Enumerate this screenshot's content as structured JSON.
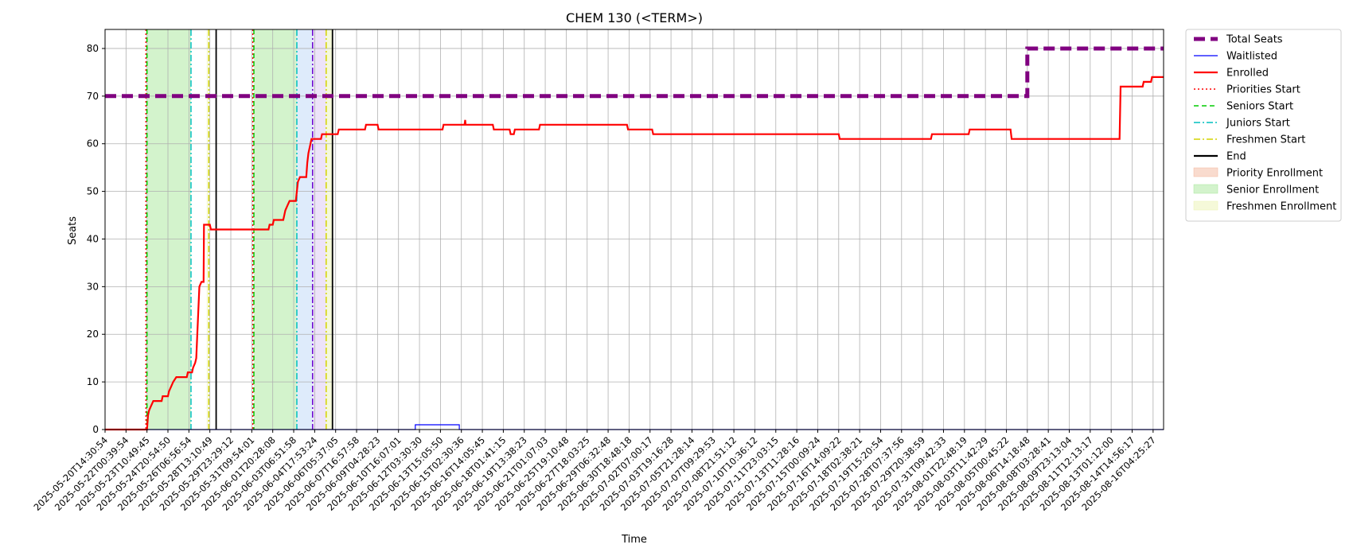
{
  "chart_data": {
    "type": "line",
    "title": "CHEM 130 (<TERM>)",
    "xlabel": "Time",
    "ylabel": "Seats",
    "ylim": [
      0,
      84
    ],
    "yticks": [
      0,
      10,
      20,
      30,
      40,
      50,
      60,
      70,
      80
    ],
    "xlim": [
      "2025-05-20T14:30:54",
      "2025-08-17T04:00:00"
    ],
    "grid": true,
    "legend_position": "outside-top-right",
    "xticks": [
      "2025-05-20T14:30:54",
      "2025-05-22T00:39:54",
      "2025-05-23T10:49:45",
      "2025-05-24T20:54:50",
      "2025-05-26T06:56:54",
      "2025-05-28T13:10:49",
      "2025-05-29T23:29:12",
      "2025-05-31T09:54:01",
      "2025-06-01T20:28:08",
      "2025-06-03T06:51:58",
      "2025-06-04T17:53:24",
      "2025-06-06T05:37:05",
      "2025-06-07T16:57:58",
      "2025-06-09T04:28:23",
      "2025-06-10T16:07:01",
      "2025-06-12T03:30:30",
      "2025-06-13T15:05:50",
      "2025-06-15T02:30:36",
      "2025-06-16T14:05:45",
      "2025-06-18T01:41:15",
      "2025-06-19T13:38:23",
      "2025-06-21T01:07:03",
      "2025-06-25T19:10:48",
      "2025-06-27T18:03:25",
      "2025-06-29T06:32:48",
      "2025-06-30T18:48:18",
      "2025-07-02T07:00:17",
      "2025-07-03T19:16:28",
      "2025-07-05T21:28:14",
      "2025-07-07T09:29:53",
      "2025-07-08T21:51:12",
      "2025-07-10T10:36:12",
      "2025-07-11T23:03:15",
      "2025-07-13T11:28:16",
      "2025-07-15T00:09:24",
      "2025-07-16T14:09:22",
      "2025-07-18T02:38:21",
      "2025-07-19T15:20:54",
      "2025-07-28T07:37:56",
      "2025-07-29T20:38:59",
      "2025-07-31T09:42:33",
      "2025-08-01T22:48:19",
      "2025-08-03T11:42:29",
      "2025-08-05T00:45:22",
      "2025-08-06T14:18:48",
      "2025-08-08T03:28:41",
      "2025-08-09T23:13:04",
      "2025-08-11T12:13:17",
      "2025-08-13T01:12:00",
      "2025-08-14T14:56:17",
      "2025-08-16T04:25:27"
    ],
    "series": [
      {
        "name": "Total Seats",
        "color": "#800080",
        "style": "dashed-thick",
        "points": [
          [
            0,
            70
          ],
          [
            44,
            70
          ],
          [
            44,
            80
          ],
          [
            50.5,
            80
          ]
        ]
      },
      {
        "name": "Waitlisted",
        "color": "#0000ff",
        "style": "solid-thin",
        "points": [
          [
            0,
            0
          ],
          [
            14.8,
            0
          ],
          [
            14.8,
            1
          ],
          [
            16.9,
            1
          ],
          [
            16.9,
            0
          ],
          [
            50.5,
            0
          ]
        ]
      },
      {
        "name": "Enrolled",
        "color": "#ff0000",
        "style": "solid",
        "points": [
          [
            0,
            0
          ],
          [
            2.0,
            0
          ],
          [
            2.05,
            3
          ],
          [
            2.1,
            4
          ],
          [
            2.2,
            5
          ],
          [
            2.3,
            6
          ],
          [
            2.7,
            6
          ],
          [
            2.75,
            7
          ],
          [
            3.0,
            7
          ],
          [
            3.05,
            8
          ],
          [
            3.15,
            9
          ],
          [
            3.25,
            10
          ],
          [
            3.4,
            11
          ],
          [
            3.9,
            11
          ],
          [
            3.95,
            12
          ],
          [
            4.15,
            12
          ],
          [
            4.2,
            13
          ],
          [
            4.3,
            14
          ],
          [
            4.35,
            15
          ],
          [
            4.4,
            20
          ],
          [
            4.45,
            25
          ],
          [
            4.5,
            30
          ],
          [
            4.6,
            31
          ],
          [
            4.7,
            31
          ],
          [
            4.72,
            43
          ],
          [
            5.0,
            43
          ],
          [
            5.05,
            42
          ],
          [
            7.8,
            42
          ],
          [
            7.85,
            43
          ],
          [
            8.0,
            43
          ],
          [
            8.05,
            44
          ],
          [
            8.5,
            44
          ],
          [
            8.55,
            45
          ],
          [
            8.6,
            46
          ],
          [
            8.7,
            47
          ],
          [
            8.8,
            48
          ],
          [
            9.1,
            48
          ],
          [
            9.15,
            50
          ],
          [
            9.2,
            52
          ],
          [
            9.3,
            53
          ],
          [
            9.6,
            53
          ],
          [
            9.65,
            56
          ],
          [
            9.7,
            58
          ],
          [
            9.8,
            60
          ],
          [
            9.85,
            61
          ],
          [
            10.3,
            61
          ],
          [
            10.35,
            62
          ],
          [
            11.1,
            62
          ],
          [
            11.15,
            63
          ],
          [
            12.4,
            63
          ],
          [
            12.45,
            64
          ],
          [
            13.0,
            64
          ],
          [
            13.05,
            63
          ],
          [
            16.1,
            63
          ],
          [
            16.15,
            64
          ],
          [
            17.15,
            64
          ],
          [
            17.18,
            65
          ],
          [
            17.2,
            64
          ],
          [
            18.5,
            64
          ],
          [
            18.55,
            63
          ],
          [
            19.3,
            63
          ],
          [
            19.35,
            62
          ],
          [
            19.5,
            62
          ],
          [
            19.55,
            63
          ],
          [
            20.7,
            63
          ],
          [
            20.75,
            64
          ],
          [
            24.9,
            64
          ],
          [
            24.95,
            63
          ],
          [
            26.1,
            63
          ],
          [
            26.15,
            62
          ],
          [
            35.0,
            62
          ],
          [
            35.05,
            61
          ],
          [
            39.4,
            61
          ],
          [
            39.45,
            62
          ],
          [
            41.2,
            62
          ],
          [
            41.25,
            63
          ],
          [
            43.2,
            63
          ],
          [
            43.25,
            61
          ],
          [
            48.4,
            61
          ],
          [
            48.45,
            72
          ],
          [
            49.5,
            72
          ],
          [
            49.55,
            73
          ],
          [
            49.9,
            73
          ],
          [
            49.95,
            74
          ],
          [
            50.5,
            74
          ]
        ]
      }
    ],
    "vlines": [
      {
        "name": "Priorities Start",
        "color": "#ff0000",
        "style": "dotted",
        "x": [
          1.95,
          7.05
        ]
      },
      {
        "name": "Seniors Start",
        "color": "#00cc00",
        "style": "dashed",
        "x": [
          2.0,
          7.1
        ]
      },
      {
        "name": "Juniors Start",
        "color": "#00bfbf",
        "style": "dashdot",
        "x": [
          4.1,
          9.15
        ]
      },
      {
        "name": "Freshmen Start",
        "color": "#d4d400",
        "style": "dashdot",
        "x": [
          4.95,
          10.55
        ]
      },
      {
        "name": "End",
        "color": "#000000",
        "style": "solid",
        "x": [
          5.3,
          10.85
        ]
      },
      {
        "name": "",
        "color": "#6a00d0",
        "style": "dashdot",
        "x": [
          9.9
        ]
      }
    ],
    "spans": [
      {
        "name": "Priority Enrollment",
        "color": "#f4b89e",
        "ranges": []
      },
      {
        "name": "Senior Enrollment",
        "color": "#a8e89a",
        "ranges": [
          [
            2.0,
            4.1
          ],
          [
            7.1,
            9.15
          ]
        ]
      },
      {
        "name": "Freshmen Enrollment",
        "color": "#ecf4b4",
        "ranges": [
          [
            4.85,
            4.95
          ],
          [
            10.55,
            10.85
          ]
        ]
      },
      {
        "name": "",
        "color": "#bdd8f8",
        "ranges": [
          [
            9.15,
            9.9
          ]
        ]
      },
      {
        "name": "",
        "color": "#dcc8f4",
        "ranges": [
          [
            9.9,
            10.55
          ]
        ]
      }
    ],
    "legend": [
      {
        "label": "Total Seats",
        "kind": "line",
        "color": "#800080",
        "style": "dashed-thick"
      },
      {
        "label": "Waitlisted",
        "kind": "line",
        "color": "#0000ff",
        "style": "solid-thin"
      },
      {
        "label": "Enrolled",
        "kind": "line",
        "color": "#ff0000",
        "style": "solid"
      },
      {
        "label": "Priorities Start",
        "kind": "line",
        "color": "#ff0000",
        "style": "dotted"
      },
      {
        "label": "Seniors Start",
        "kind": "line",
        "color": "#00cc00",
        "style": "dashed"
      },
      {
        "label": "Juniors Start",
        "kind": "line",
        "color": "#00bfbf",
        "style": "dashdot"
      },
      {
        "label": "Freshmen Start",
        "kind": "line",
        "color": "#d4d400",
        "style": "dashdot"
      },
      {
        "label": "End",
        "kind": "line",
        "color": "#000000",
        "style": "solid"
      },
      {
        "label": "Priority Enrollment",
        "kind": "patch",
        "color": "#f4b89e"
      },
      {
        "label": "Senior Enrollment",
        "kind": "patch",
        "color": "#a8e89a"
      },
      {
        "label": "Freshmen Enrollment",
        "kind": "patch",
        "color": "#ecf4b4"
      }
    ]
  }
}
